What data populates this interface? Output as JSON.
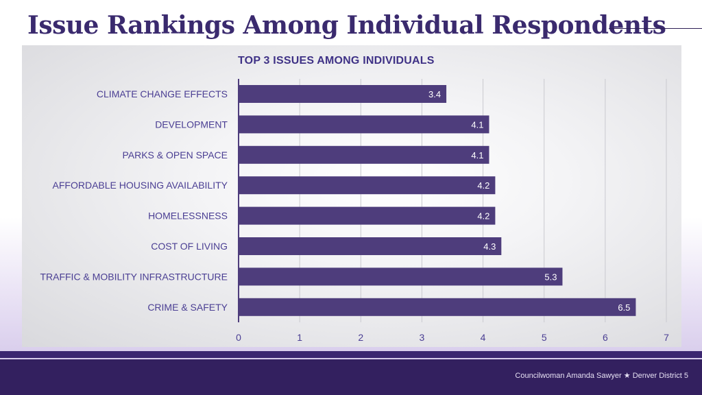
{
  "slide": {
    "title": "Issue Rankings Among Individual Respondents",
    "footer_name": "Councilwoman Amanda Sawyer",
    "footer_star": "★",
    "footer_district": "Denver District 5"
  },
  "colors": {
    "bar": "#4e3d7c",
    "label": "#4a3e93",
    "title": "#3a2a6e",
    "footer": "#33205f"
  },
  "chart_data": {
    "type": "bar",
    "orientation": "horizontal",
    "title": "TOP 3 ISSUES AMONG INDIVIDUALS",
    "categories": [
      "CLIMATE CHANGE EFFECTS",
      "DEVELOPMENT",
      "PARKS & OPEN SPACE",
      "AFFORDABLE HOUSING AVAILABILITY",
      "HOMELESSNESS",
      "COST OF LIVING",
      "TRAFFIC & MOBILITY INFRASTRUCTURE",
      "CRIME & SAFETY"
    ],
    "values": [
      3.4,
      4.1,
      4.1,
      4.2,
      4.2,
      4.3,
      5.3,
      6.5
    ],
    "data_labels": [
      "3.4",
      "4.1",
      "4.1",
      "4.2",
      "4.2",
      "4.3",
      "5.3",
      "6.5"
    ],
    "xlim": [
      0,
      7
    ],
    "xticks": [
      "0",
      "1",
      "2",
      "3",
      "4",
      "5",
      "6",
      "7"
    ],
    "xlabel": "",
    "ylabel": "",
    "grid": true,
    "legend": "none"
  }
}
